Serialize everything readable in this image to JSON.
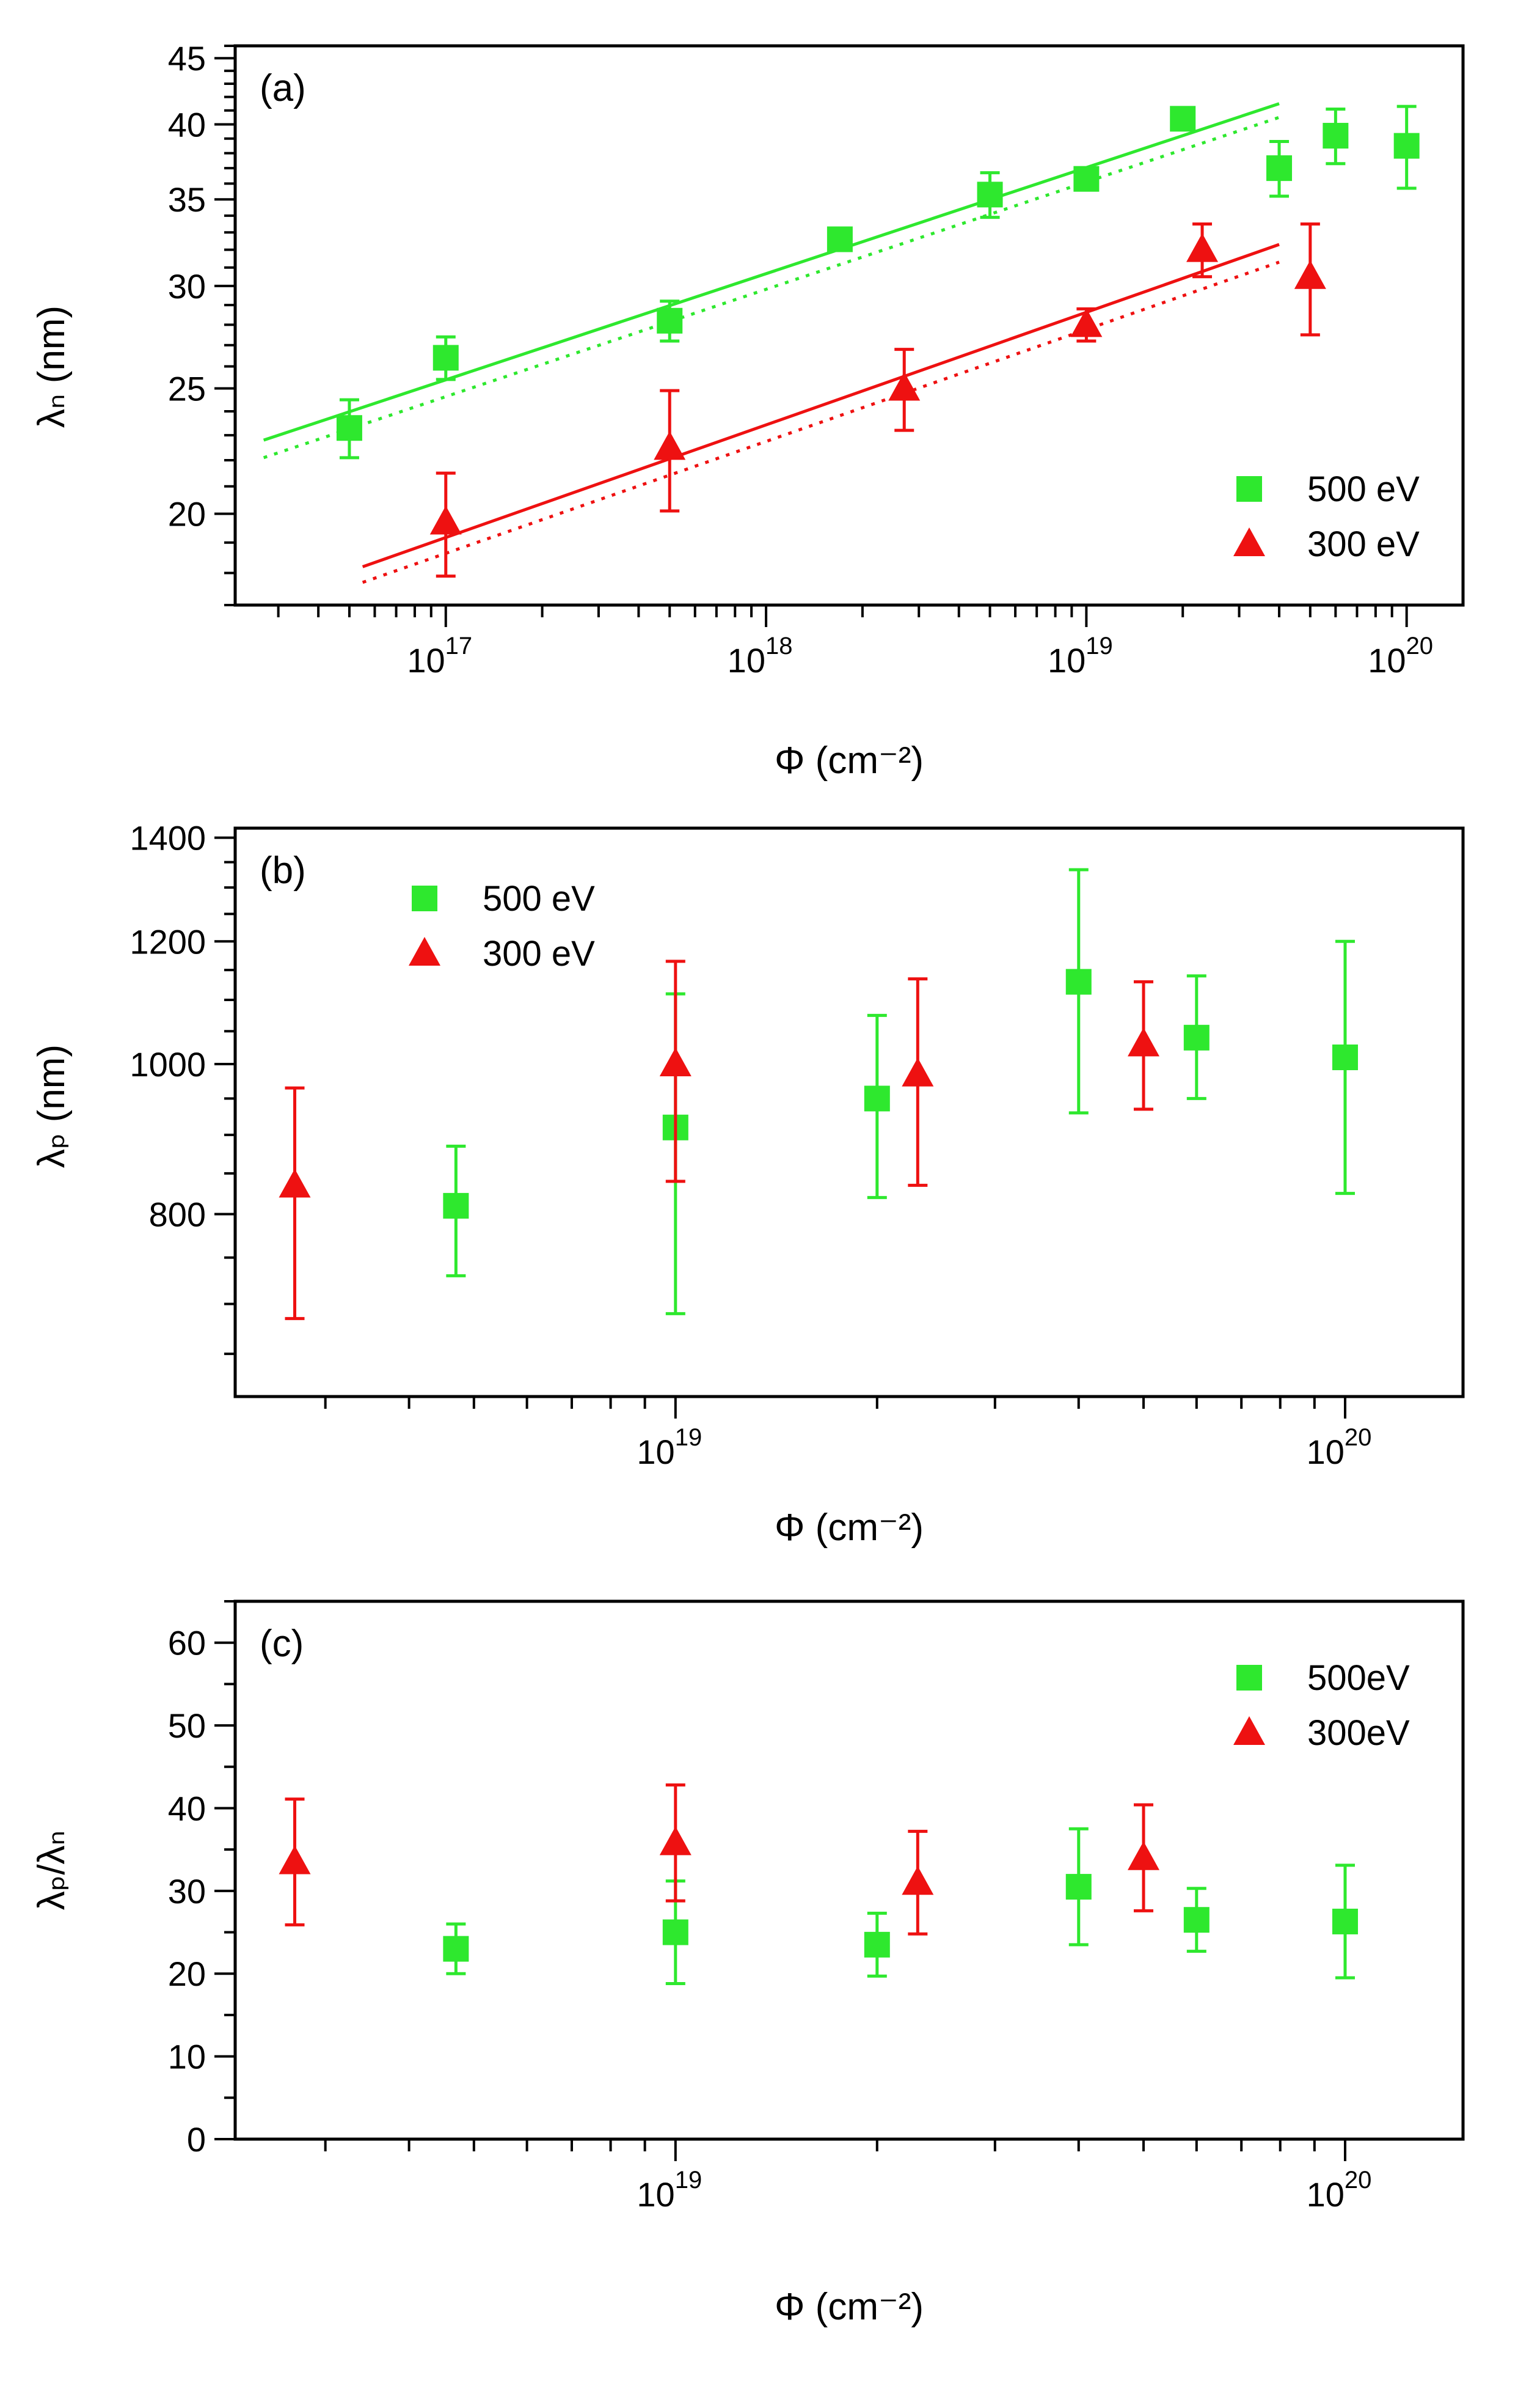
{
  "chart_data": [
    {
      "panel": "(a)",
      "type": "scatter",
      "xscale": "log",
      "yscale": "log",
      "xlabel": "Φ (cm⁻²)",
      "ylabel": "λₙ (nm)",
      "xlim": [
        2.2e+16,
        1.5e+20
      ],
      "ylim": [
        17,
        46
      ],
      "x_tick_labels": [
        "10^17",
        "10^18",
        "10^19",
        "10^20"
      ],
      "y_tick_labels": [
        "20",
        "25",
        "30",
        "35",
        "40",
        "45"
      ],
      "legend": [
        "500 eV",
        "300 eV"
      ],
      "legend_position": "bottom-right",
      "series": [
        {
          "name": "500 eV",
          "marker": "square",
          "color": "#2EE82E",
          "x": [
            5e+16,
            1e+17,
            5e+17,
            1.7e+18,
            5e+18,
            1e+19,
            2e+19,
            4e+19,
            6e+19,
            1e+20
          ],
          "y": [
            23.3,
            26.4,
            28.2,
            32.6,
            35.3,
            36.3,
            40.4,
            37.0,
            39.2,
            38.5
          ],
          "err": [
            1.2,
            1.0,
            1.0,
            0.6,
            1.4,
            0.6,
            0.6,
            1.8,
            1.9,
            2.8
          ]
        },
        {
          "name": "300 eV",
          "marker": "triangle",
          "color": "#EE1111",
          "x": [
            1e+17,
            5e+17,
            2.7e+18,
            1e+19,
            2.3e+19,
            5e+19
          ],
          "y": [
            19.7,
            22.5,
            25.0,
            28.0,
            32.0,
            30.5
          ],
          "err": [
            1.8,
            2.4,
            1.8,
            0.8,
            1.5,
            3.0
          ]
        }
      ],
      "fits": [
        {
          "series": "500 eV",
          "style": "solid",
          "x": [
            2.7e+16,
            4e+19
          ],
          "y": [
            22.8,
            41.5
          ]
        },
        {
          "series": "500 eV",
          "style": "dotted",
          "x": [
            2.7e+16,
            4e+19
          ],
          "y": [
            22.1,
            40.5
          ]
        },
        {
          "series": "300 eV",
          "style": "solid",
          "x": [
            5.5e+16,
            4e+19
          ],
          "y": [
            18.2,
            32.3
          ]
        },
        {
          "series": "300 eV",
          "style": "dotted",
          "x": [
            5.5e+16,
            4e+19
          ],
          "y": [
            17.7,
            31.3
          ]
        }
      ]
    },
    {
      "panel": "(b)",
      "type": "scatter",
      "xscale": "log",
      "yscale": "log",
      "xlabel": "Φ (cm⁻²)",
      "ylabel": "λₚ (nm)",
      "xlim": [
        2.2e+18,
        1.5e+20
      ],
      "ylim": [
        610,
        1420
      ],
      "x_tick_labels": [
        "10^19",
        "10^20"
      ],
      "y_tick_labels": [
        "800",
        "1000",
        "1200",
        "1400"
      ],
      "legend": [
        "500 eV",
        "300 eV"
      ],
      "legend_position": "top-left",
      "series": [
        {
          "name": "500 eV",
          "marker": "square",
          "color": "#2EE82E",
          "x": [
            4.7e+18,
            1e+19,
            2e+19,
            4e+19,
            6e+19,
            1e+20
          ],
          "y": [
            810,
            910,
            950,
            1130,
            1040,
            1010
          ],
          "err_low": [
            80,
            220,
            130,
            200,
            90,
            185
          ],
          "err_high": [
            75,
            200,
            125,
            205,
            100,
            190
          ]
        },
        {
          "name": "300 eV",
          "marker": "triangle",
          "color": "#EE1111",
          "x": [
            2.7e+18,
            1e+19,
            2.3e+19,
            5e+19
          ],
          "y": [
            835,
            1000,
            985,
            1030
          ],
          "err_low": [
            150,
            160,
            150,
            95
          ],
          "err_high": [
            130,
            165,
            150,
            100
          ]
        }
      ]
    },
    {
      "panel": "(c)",
      "type": "scatter",
      "xscale": "log",
      "yscale": "linear",
      "xlabel": "Φ (cm⁻²)",
      "ylabel": "λₚ/λₙ",
      "xlim": [
        2.2e+18,
        1.5e+20
      ],
      "ylim": [
        0,
        65
      ],
      "x_tick_labels": [
        "10^19",
        "10^20"
      ],
      "y_tick_labels": [
        "0",
        "10",
        "20",
        "30",
        "40",
        "50",
        "60"
      ],
      "legend": [
        "500eV",
        "300eV"
      ],
      "legend_position": "top-right",
      "series": [
        {
          "name": "500eV",
          "marker": "square",
          "color": "#2EE82E",
          "x": [
            4.7e+18,
            1e+19,
            2e+19,
            4e+19,
            6e+19,
            1e+20
          ],
          "y": [
            23.0,
            25.0,
            23.5,
            30.5,
            26.5,
            26.3
          ],
          "err": [
            3.0,
            6.2,
            3.8,
            7.0,
            3.8,
            6.8
          ]
        },
        {
          "name": "300eV",
          "marker": "triangle",
          "color": "#EE1111",
          "x": [
            2.7e+18,
            1e+19,
            2.3e+19,
            5e+19
          ],
          "y": [
            33.5,
            35.8,
            31.0,
            34.0
          ],
          "err": [
            7.6,
            7.0,
            6.2,
            6.4
          ]
        }
      ]
    }
  ]
}
